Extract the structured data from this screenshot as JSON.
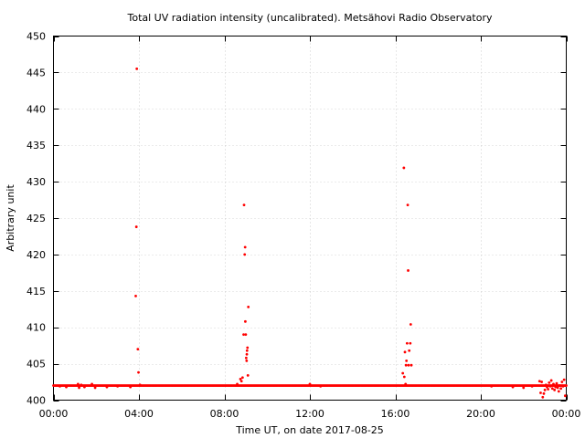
{
  "chart_data": {
    "type": "scatter",
    "title": "Total UV radiation intensity (uncalibrated). Metsähovi Radio Observatory",
    "xlabel": "Time UT, on date 2017-08-25",
    "ylabel": "Arbitrary unit",
    "x_unit": "hours UT",
    "xlim": [
      0,
      24
    ],
    "ylim": [
      400,
      450
    ],
    "x_ticks": [
      0,
      4,
      8,
      12,
      16,
      20,
      24
    ],
    "x_tick_labels": [
      "00:00",
      "04:00",
      "08:00",
      "12:00",
      "16:00",
      "20:00",
      "00:00"
    ],
    "y_ticks": [
      400,
      405,
      410,
      415,
      420,
      425,
      430,
      435,
      440,
      445,
      450
    ],
    "y_tick_labels": [
      "400",
      "405",
      "410",
      "415",
      "420",
      "425",
      "430",
      "435",
      "440",
      "445",
      "450"
    ],
    "grid": true,
    "legend": "none",
    "baseline": {
      "x_range": [
        0,
        24
      ],
      "y": 402.0,
      "spacing_hours": 0.05
    },
    "series": [
      {
        "color": "#ff0000",
        "points": [
          [
            0.3,
            401.9
          ],
          [
            0.6,
            401.8
          ],
          [
            1.15,
            402.2
          ],
          [
            1.2,
            401.7
          ],
          [
            1.3,
            402.1
          ],
          [
            1.45,
            401.8
          ],
          [
            1.8,
            402.2
          ],
          [
            1.95,
            401.7
          ],
          [
            2.5,
            401.8
          ],
          [
            3.0,
            401.9
          ],
          [
            3.6,
            401.8
          ],
          [
            3.9,
            445.5
          ],
          [
            3.88,
            423.8
          ],
          [
            3.85,
            414.3
          ],
          [
            3.95,
            407.0
          ],
          [
            3.98,
            403.8
          ],
          [
            4.05,
            402.1
          ],
          [
            8.6,
            402.2
          ],
          [
            8.75,
            402.9
          ],
          [
            8.8,
            402.6
          ],
          [
            8.85,
            403.1
          ],
          [
            8.9,
            409.0
          ],
          [
            8.92,
            426.8
          ],
          [
            8.95,
            420.0
          ],
          [
            8.97,
            421.0
          ],
          [
            8.98,
            410.8
          ],
          [
            9.0,
            409.0
          ],
          [
            9.02,
            405.8
          ],
          [
            9.04,
            405.4
          ],
          [
            9.05,
            406.3
          ],
          [
            9.06,
            406.8
          ],
          [
            9.08,
            407.2
          ],
          [
            9.1,
            403.4
          ],
          [
            9.12,
            412.8
          ],
          [
            12.0,
            402.2
          ],
          [
            12.5,
            401.9
          ],
          [
            16.35,
            403.7
          ],
          [
            16.4,
            431.9
          ],
          [
            16.42,
            403.2
          ],
          [
            16.45,
            406.6
          ],
          [
            16.48,
            402.2
          ],
          [
            16.5,
            404.8
          ],
          [
            16.52,
            405.4
          ],
          [
            16.55,
            407.8
          ],
          [
            16.58,
            426.8
          ],
          [
            16.6,
            417.8
          ],
          [
            16.62,
            404.8
          ],
          [
            16.65,
            406.8
          ],
          [
            16.7,
            407.8
          ],
          [
            16.72,
            410.4
          ],
          [
            16.75,
            404.8
          ],
          [
            20.5,
            401.9
          ],
          [
            21.5,
            401.8
          ],
          [
            22.0,
            401.7
          ],
          [
            22.4,
            401.9
          ],
          [
            22.75,
            402.6
          ],
          [
            22.8,
            401.0
          ],
          [
            22.85,
            402.5
          ],
          [
            22.9,
            400.4
          ],
          [
            22.95,
            400.9
          ],
          [
            23.0,
            401.4
          ],
          [
            23.05,
            402.1
          ],
          [
            23.1,
            401.8
          ],
          [
            23.15,
            401.5
          ],
          [
            23.2,
            402.4
          ],
          [
            23.25,
            401.9
          ],
          [
            23.3,
            402.7
          ],
          [
            23.35,
            401.6
          ],
          [
            23.4,
            402.2
          ],
          [
            23.45,
            401.4
          ],
          [
            23.5,
            401.8
          ],
          [
            23.55,
            402.3
          ],
          [
            23.6,
            401.7
          ],
          [
            23.65,
            401.2
          ],
          [
            23.7,
            402.0
          ],
          [
            23.75,
            401.6
          ],
          [
            23.8,
            402.5
          ],
          [
            23.85,
            401.9
          ],
          [
            23.9,
            402.8
          ],
          [
            23.95,
            400.6
          ]
        ]
      }
    ]
  }
}
